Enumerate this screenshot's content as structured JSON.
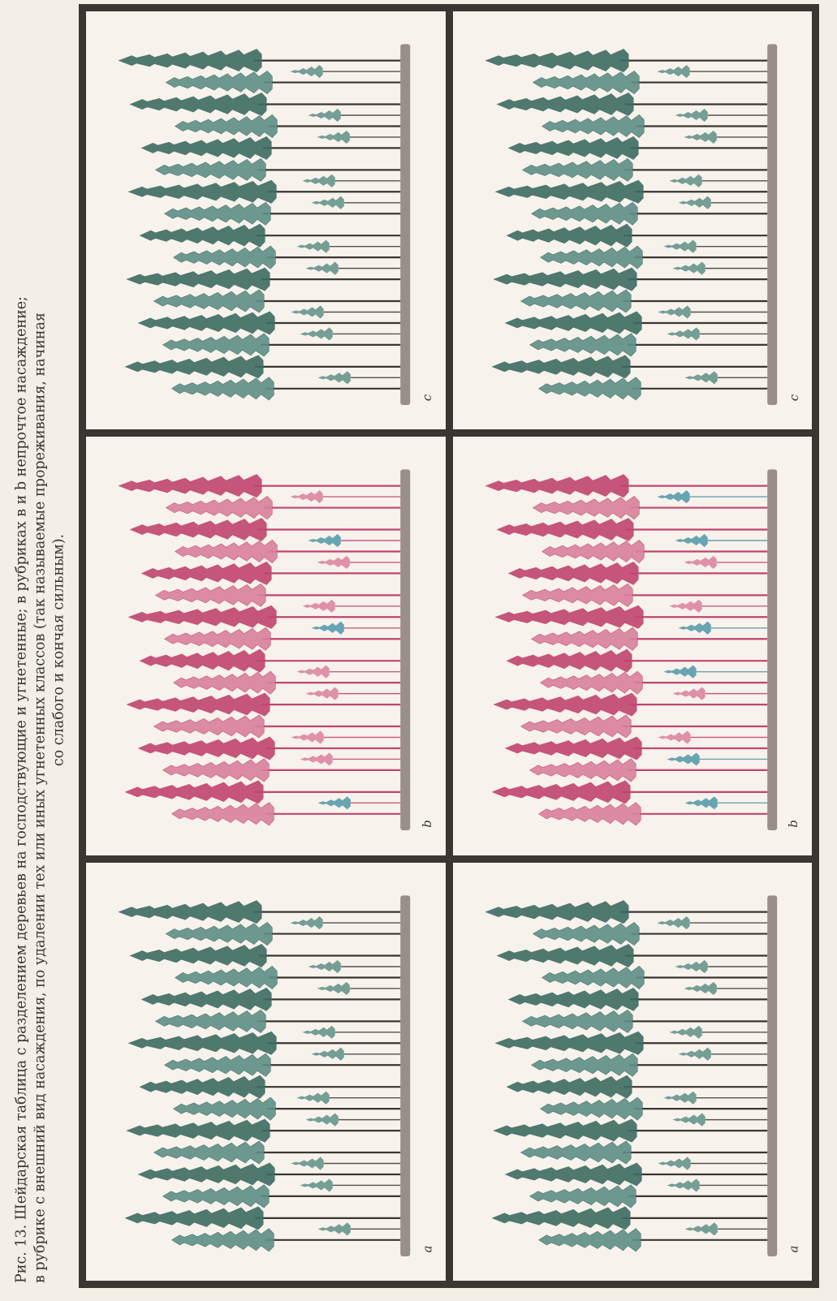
{
  "caption": {
    "line1": "Рис. 13. Шейдарская таблица с разделением деревьев на господствующие и угнетенные; в рубриках в и b непрочтое насаждение;",
    "line2": "в рубрике с внешний вид насаждения, по удалении тех или иных угнетенных классов (так называемые прореживания, начиная",
    "line3": "со слабого и кончая сильным)."
  },
  "panels": [
    {
      "id": "a",
      "letter": "a",
      "scheme": "green"
    },
    {
      "id": "b",
      "letter": "b",
      "scheme": "pink"
    },
    {
      "id": "c",
      "letter": "c",
      "scheme": "green"
    },
    {
      "id": "d",
      "letter": "a",
      "scheme": "green"
    },
    {
      "id": "e",
      "letter": "b",
      "scheme": "pinkmix"
    },
    {
      "id": "f",
      "letter": "c",
      "scheme": "green"
    }
  ],
  "colors": {
    "ink": "#3b3632",
    "green": "#3d6b62",
    "green_light": "#5e8f86",
    "pink": "#c0456e",
    "pink_light": "#d9809c",
    "blue_young": "#4f96a8",
    "ground": "#9a8f88"
  }
}
